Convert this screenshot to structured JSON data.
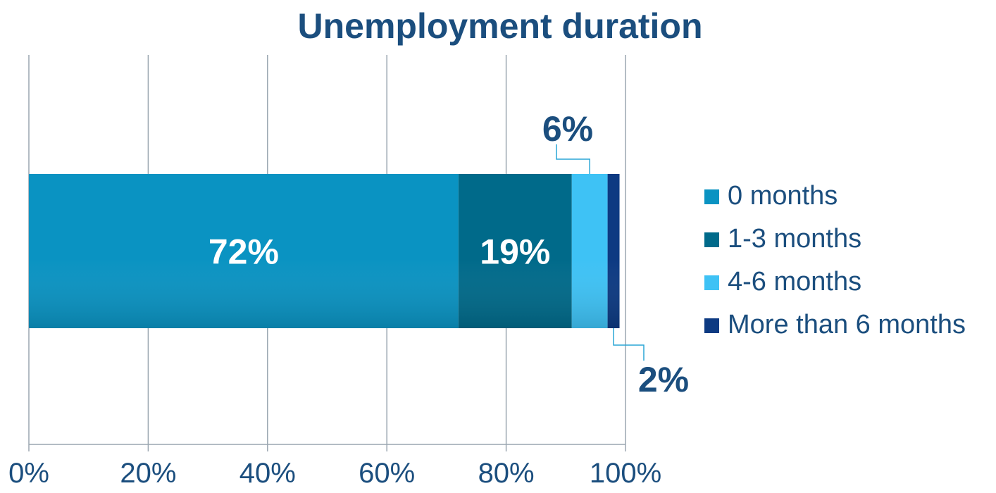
{
  "chart_data": {
    "type": "bar",
    "orientation": "horizontal",
    "stacked": true,
    "title": "Unemployment duration",
    "xlabel": "",
    "ylabel": "",
    "xlim": [
      0,
      100
    ],
    "x_ticks": [
      "0%",
      "20%",
      "40%",
      "60%",
      "80%",
      "100%"
    ],
    "grid": true,
    "legend_position": "right",
    "series": [
      {
        "name": "0 months",
        "value": 72,
        "label": "72%",
        "color": "#0a93c2",
        "label_position": "inside"
      },
      {
        "name": "1-3 months",
        "value": 19,
        "label": "19%",
        "color": "#006a8a",
        "label_position": "inside"
      },
      {
        "name": "4-6 months",
        "value": 6,
        "label": "6%",
        "color": "#3ec2f5",
        "label_position": "above"
      },
      {
        "name": "More than 6 months",
        "value": 2,
        "label": "2%",
        "color": "#0d3a82",
        "label_position": "below"
      }
    ]
  }
}
